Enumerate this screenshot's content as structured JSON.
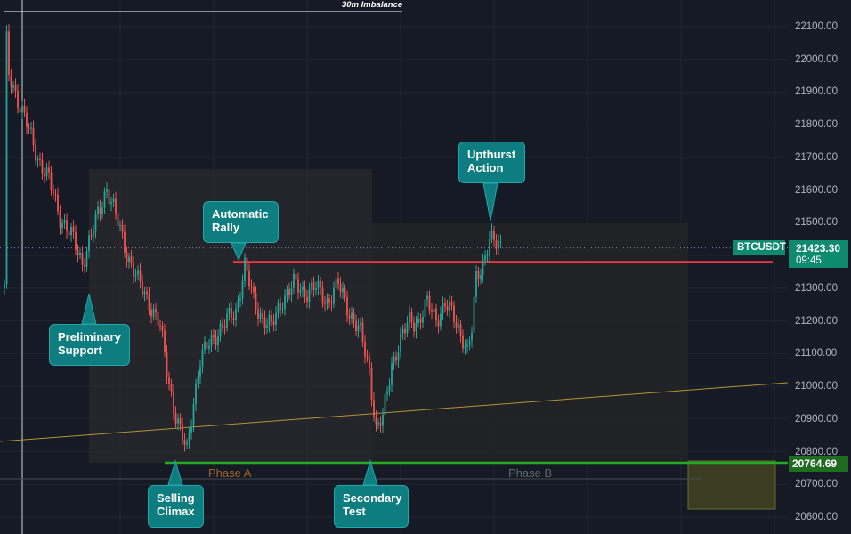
{
  "chart_data": {
    "type": "candlestick",
    "symbol": "BTCUSDT",
    "last_price": "21423.30",
    "countdown": "09:45",
    "support_price": "20764.69",
    "resistance_price": 21380,
    "y_ticks": [
      "22100.00",
      "22000.00",
      "21900.00",
      "21800.00",
      "21700.00",
      "21600.00",
      "21500.00",
      "21400.00",
      "21300.00",
      "21200.00",
      "21100.00",
      "21000.00",
      "20900.00",
      "20800.00",
      "20700.00",
      "20600.00"
    ],
    "ylim": [
      20560,
      22180
    ],
    "imbalance_label": "30m Imbalance",
    "phases": [
      "Phase A",
      "Phase B"
    ],
    "annotations": [
      {
        "text": "Preliminary\nSupport"
      },
      {
        "text": "Automatic\nRally"
      },
      {
        "text": "Selling\nClimax"
      },
      {
        "text": "Secondary\nTest"
      },
      {
        "text": "Upthurst\nAction"
      }
    ],
    "price_path": [
      [
        0,
        21300
      ],
      [
        1,
        22050
      ],
      [
        2,
        21950
      ],
      [
        5,
        21900
      ],
      [
        10,
        21800
      ],
      [
        15,
        21700
      ],
      [
        20,
        21630
      ],
      [
        25,
        21520
      ],
      [
        30,
        21460
      ],
      [
        35,
        21380
      ],
      [
        40,
        21480
      ],
      [
        46,
        21610
      ],
      [
        50,
        21520
      ],
      [
        55,
        21410
      ],
      [
        60,
        21320
      ],
      [
        65,
        21260
      ],
      [
        70,
        21180
      ],
      [
        73,
        21050
      ],
      [
        76,
        20940
      ],
      [
        79,
        20860
      ],
      [
        82,
        20800
      ],
      [
        85,
        20960
      ],
      [
        88,
        21080
      ],
      [
        92,
        21130
      ],
      [
        96,
        21170
      ],
      [
        100,
        21200
      ],
      [
        104,
        21230
      ],
      [
        108,
        21370
      ],
      [
        112,
        21260
      ],
      [
        116,
        21210
      ],
      [
        120,
        21180
      ],
      [
        125,
        21270
      ],
      [
        130,
        21310
      ],
      [
        135,
        21290
      ],
      [
        140,
        21300
      ],
      [
        145,
        21260
      ],
      [
        150,
        21310
      ],
      [
        155,
        21230
      ],
      [
        160,
        21160
      ],
      [
        164,
        21050
      ],
      [
        167,
        20870
      ],
      [
        170,
        20900
      ],
      [
        174,
        21070
      ],
      [
        178,
        21140
      ],
      [
        182,
        21200
      ],
      [
        186,
        21200
      ],
      [
        190,
        21250
      ],
      [
        194,
        21210
      ],
      [
        198,
        21250
      ],
      [
        202,
        21210
      ],
      [
        206,
        21150
      ],
      [
        208,
        21100
      ],
      [
        210,
        21170
      ],
      [
        212,
        21330
      ],
      [
        215,
        21380
      ],
      [
        218,
        21450
      ],
      [
        221,
        21430
      ],
      [
        223,
        21430
      ]
    ],
    "colors": {
      "up": "#26a69a",
      "down": "#ef5350",
      "support": "#22ab23",
      "resistance": "#f23645",
      "trend": "#ad9634",
      "callout": "#0e7d80"
    }
  }
}
